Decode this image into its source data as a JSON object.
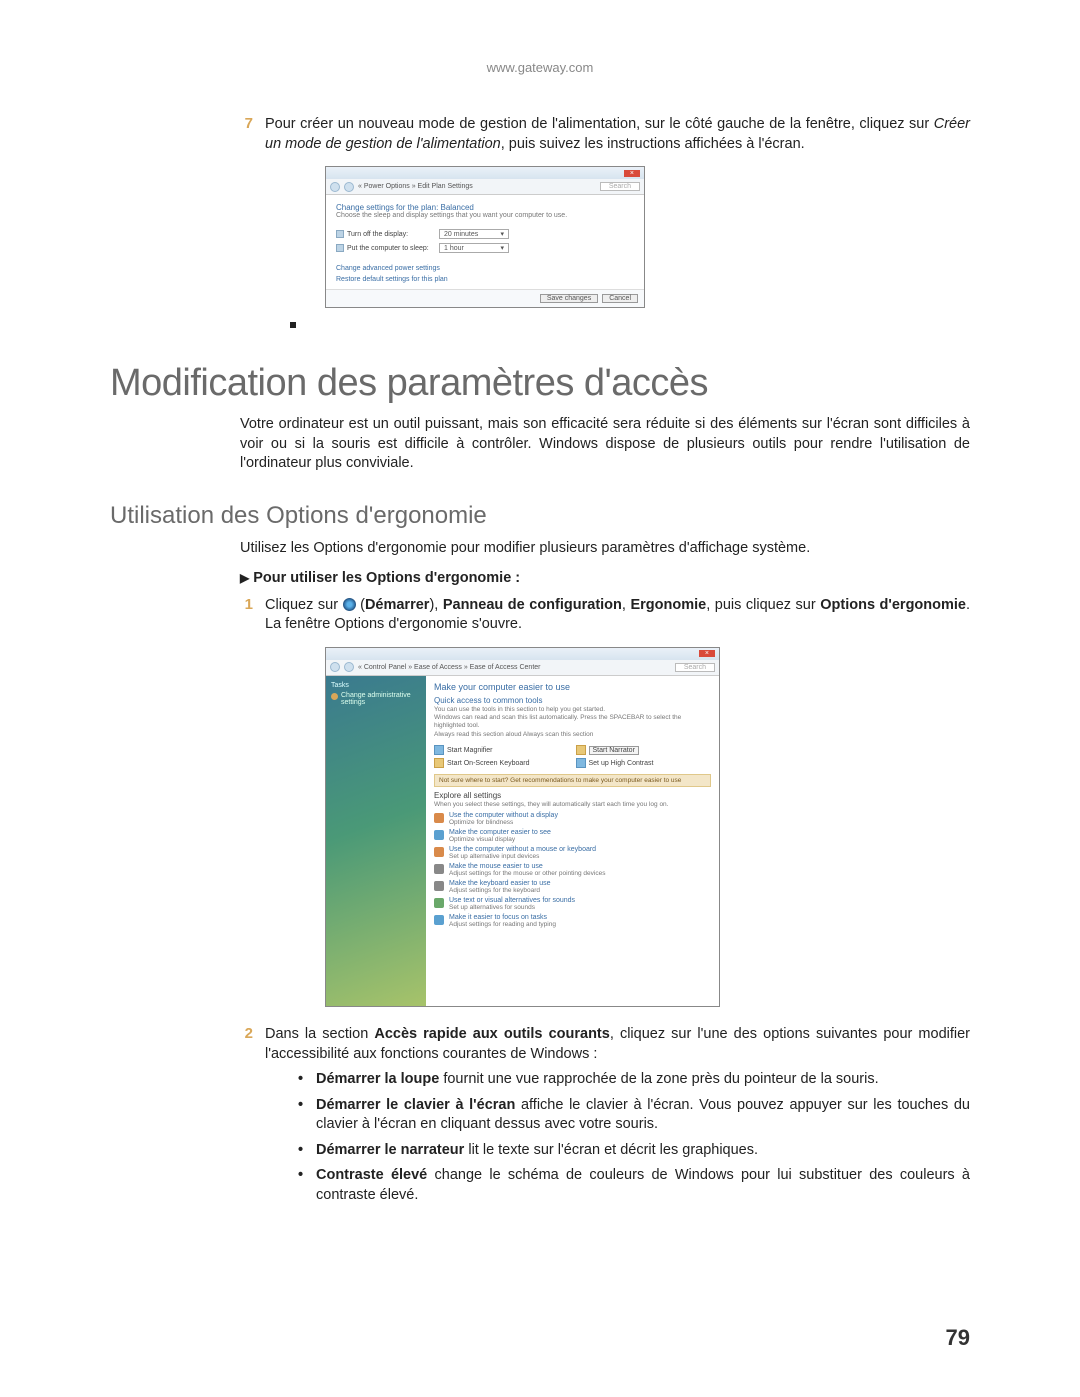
{
  "header": {
    "url": "www.gateway.com"
  },
  "step7": {
    "num": "7",
    "text_pre": "Pour créer un nouveau mode de gestion de l'alimentation, sur le côté gauche de la fenêtre, cliquez sur ",
    "text_italic": "Créer un mode de gestion de l'alimentation",
    "text_post": ", puis suivez les instructions affichées à l'écran."
  },
  "screenshot1": {
    "breadcrumb": "« Power Options » Edit Plan Settings",
    "search_placeholder": "Search",
    "title": "Change settings for the plan: Balanced",
    "subtitle": "Choose the sleep and display settings that you want your computer to use.",
    "row1_label": "Turn off the display:",
    "row1_value": "20 minutes",
    "row2_label": "Put the computer to sleep:",
    "row2_value": "1 hour",
    "link1": "Change advanced power settings",
    "link2": "Restore default settings for this plan",
    "btn_save": "Save changes",
    "btn_cancel": "Cancel"
  },
  "main_title": "Modification des paramètres d'accès",
  "intro": "Votre ordinateur est un outil puissant, mais son efficacité sera réduite si des éléments sur l'écran sont difficiles à voir ou si la souris est difficile à contrôler. Windows dispose de plusieurs outils pour rendre l'utilisation de l'ordinateur plus conviviale.",
  "sub_title": "Utilisation des Options d'ergonomie",
  "sub_intro": "Utilisez les Options d'ergonomie pour modifier plusieurs paramètres d'affichage système.",
  "howto_heading": "Pour utiliser les Options d'ergonomie :",
  "step1": {
    "num": "1",
    "pre": "Cliquez sur ",
    "b1": "Démarrer",
    "s1": ", ",
    "b2": "Panneau de configuration",
    "s2": ", ",
    "b3": "Ergonomie",
    "s3": ", puis cliquez sur ",
    "b4": "Options d'ergonomie",
    "post": ". La fenêtre Options d'ergonomie s'ouvre."
  },
  "screenshot2": {
    "breadcrumb": "« Control Panel » Ease of Access » Ease of Access Center",
    "search_placeholder": "Search",
    "side_header": "Tasks",
    "side_item": "Change administrative settings",
    "hd1": "Make your computer easier to use",
    "hd2": "Quick access to common tools",
    "sm1": "You can use the tools in this section to help you get started.",
    "sm2": "Windows can read and scan this list automatically. Press the SPACEBAR to select the highlighted tool.",
    "chk": "Always read this section aloud    Always scan this section",
    "grid": {
      "a": "Start Magnifier",
      "b": "Start Narrator",
      "c": "Start On-Screen Keyboard",
      "d": "Set up High Contrast"
    },
    "bar": "Not sure where to start? Get recommendations to make your computer easier to use",
    "explore_hd": "Explore all settings",
    "explore_sm": "When you select these settings, they will automatically start each time you log on.",
    "list": [
      {
        "t1": "Use the computer without a display",
        "t2": "Optimize for blindness",
        "c": "#d98a4a"
      },
      {
        "t1": "Make the computer easier to see",
        "t2": "Optimize visual display",
        "c": "#5aa0d0"
      },
      {
        "t1": "Use the computer without a mouse or keyboard",
        "t2": "Set up alternative input devices",
        "c": "#d98a4a"
      },
      {
        "t1": "Make the mouse easier to use",
        "t2": "Adjust settings for the mouse or other pointing devices",
        "c": "#888"
      },
      {
        "t1": "Make the keyboard easier to use",
        "t2": "Adjust settings for the keyboard",
        "c": "#888"
      },
      {
        "t1": "Use text or visual alternatives for sounds",
        "t2": "Set up alternatives for sounds",
        "c": "#6aa86a"
      },
      {
        "t1": "Make it easier to focus on tasks",
        "t2": "Adjust settings for reading and typing",
        "c": "#5aa0d0"
      }
    ]
  },
  "step2": {
    "num": "2",
    "pre": "Dans la section ",
    "b1": "Accès rapide aux outils courants",
    "post": ", cliquez sur l'une des options suivantes pour modifier l'accessibilité aux fonctions courantes de Windows :"
  },
  "bullets": {
    "b1_bold": "Démarrer la loupe",
    "b1_rest": " fournit une vue rapprochée de la zone près du pointeur de la souris.",
    "b2_bold": "Démarrer le clavier à l'écran",
    "b2_rest": " affiche le clavier à l'écran. Vous pouvez appuyer sur les touches du clavier à l'écran en cliquant dessus avec votre souris.",
    "b3_bold": "Démarrer le narrateur",
    "b3_rest": " lit le texte sur l'écran et décrit les graphiques.",
    "b4_bold": "Contraste élevé",
    "b4_rest": " change le schéma de couleurs de Windows pour lui substituer des couleurs à contraste élevé."
  },
  "page_number": "79"
}
